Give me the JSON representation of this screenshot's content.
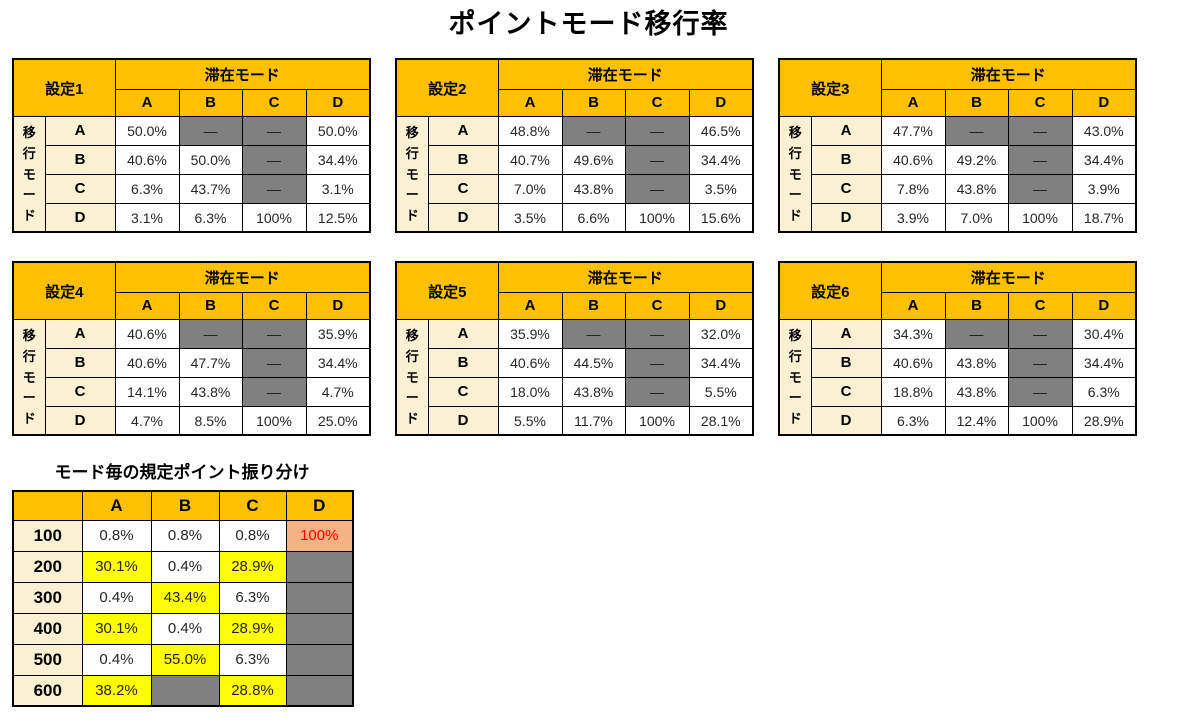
{
  "chart_data": {
    "type": "table",
    "title": "ポイントモード移行率",
    "transition_tables": {
      "col_group_header": "滞在モード",
      "row_group_header": "移行モード",
      "modes": [
        "A",
        "B",
        "C",
        "D"
      ],
      "empty_marker": "—",
      "tables": [
        {
          "name": "設定1",
          "rows": [
            [
              "50.0%",
              null,
              null,
              "50.0%"
            ],
            [
              "40.6%",
              "50.0%",
              null,
              "34.4%"
            ],
            [
              "6.3%",
              "43.7%",
              null,
              "3.1%"
            ],
            [
              "3.1%",
              "6.3%",
              "100%",
              "12.5%"
            ]
          ]
        },
        {
          "name": "設定2",
          "rows": [
            [
              "48.8%",
              null,
              null,
              "46.5%"
            ],
            [
              "40.7%",
              "49.6%",
              null,
              "34.4%"
            ],
            [
              "7.0%",
              "43.8%",
              null,
              "3.5%"
            ],
            [
              "3.5%",
              "6.6%",
              "100%",
              "15.6%"
            ]
          ]
        },
        {
          "name": "設定3",
          "rows": [
            [
              "47.7%",
              null,
              null,
              "43.0%"
            ],
            [
              "40.6%",
              "49.2%",
              null,
              "34.4%"
            ],
            [
              "7.8%",
              "43.8%",
              null,
              "3.9%"
            ],
            [
              "3.9%",
              "7.0%",
              "100%",
              "18.7%"
            ]
          ]
        },
        {
          "name": "設定4",
          "rows": [
            [
              "40.6%",
              null,
              null,
              "35.9%"
            ],
            [
              "40.6%",
              "47.7%",
              null,
              "34.4%"
            ],
            [
              "14.1%",
              "43.8%",
              null,
              "4.7%"
            ],
            [
              "4.7%",
              "8.5%",
              "100%",
              "25.0%"
            ]
          ]
        },
        {
          "name": "設定5",
          "rows": [
            [
              "35.9%",
              null,
              null,
              "32.0%"
            ],
            [
              "40.6%",
              "44.5%",
              null,
              "34.4%"
            ],
            [
              "18.0%",
              "43.8%",
              null,
              "5.5%"
            ],
            [
              "5.5%",
              "11.7%",
              "100%",
              "28.1%"
            ]
          ]
        },
        {
          "name": "設定6",
          "rows": [
            [
              "34.3%",
              null,
              null,
              "30.4%"
            ],
            [
              "40.6%",
              "43.8%",
              null,
              "34.4%"
            ],
            [
              "18.8%",
              "43.8%",
              null,
              "6.3%"
            ],
            [
              "6.3%",
              "12.4%",
              "100%",
              "28.9%"
            ]
          ]
        }
      ]
    },
    "points_table": {
      "title": "モード毎の規定ポイント振り分け",
      "columns": [
        "A",
        "B",
        "C",
        "D"
      ],
      "row_labels": [
        "100",
        "200",
        "300",
        "400",
        "500",
        "600"
      ],
      "rows": [
        [
          {
            "text": "0.8%",
            "style": "white"
          },
          {
            "text": "0.8%",
            "style": "white"
          },
          {
            "text": "0.8%",
            "style": "white"
          },
          {
            "text": "100%",
            "style": "red"
          }
        ],
        [
          {
            "text": "30.1%",
            "style": "yellow"
          },
          {
            "text": "0.4%",
            "style": "white"
          },
          {
            "text": "28.9%",
            "style": "yellow"
          },
          {
            "text": "",
            "style": "gray"
          }
        ],
        [
          {
            "text": "0.4%",
            "style": "white"
          },
          {
            "text": "43.4%",
            "style": "yellow"
          },
          {
            "text": "6.3%",
            "style": "white"
          },
          {
            "text": "",
            "style": "gray"
          }
        ],
        [
          {
            "text": "30.1%",
            "style": "yellow"
          },
          {
            "text": "0.4%",
            "style": "white"
          },
          {
            "text": "28.9%",
            "style": "yellow"
          },
          {
            "text": "",
            "style": "gray"
          }
        ],
        [
          {
            "text": "0.4%",
            "style": "white"
          },
          {
            "text": "55.0%",
            "style": "yellow"
          },
          {
            "text": "6.3%",
            "style": "white"
          },
          {
            "text": "",
            "style": "gray"
          }
        ],
        [
          {
            "text": "38.2%",
            "style": "yellow"
          },
          {
            "text": "",
            "style": "gray"
          },
          {
            "text": "28.8%",
            "style": "yellow"
          },
          {
            "text": "",
            "style": "gray"
          }
        ]
      ]
    },
    "colors": {
      "header_orange": "#FFC000",
      "label_cream": "#FCF0D3",
      "na_gray": "#808080",
      "highlight_yellow": "#FFFF00",
      "highlight_salmon": "#F4B183",
      "highlight_red_text": "#FF0000"
    }
  }
}
